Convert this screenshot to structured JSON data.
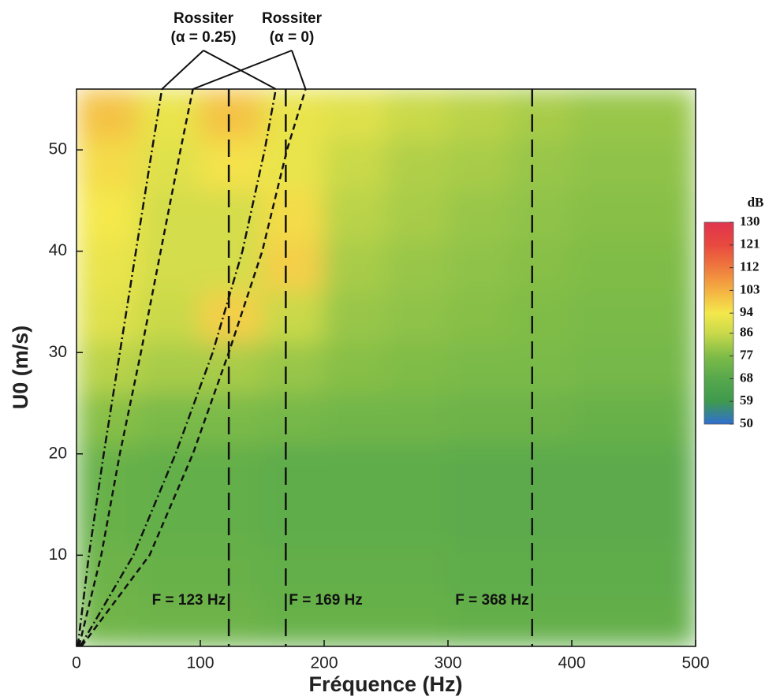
{
  "chart_data": {
    "type": "heatmap",
    "xlabel": "Fréquence (Hz)",
    "ylabel": "U0 (m/s)",
    "xlim": [
      0,
      500
    ],
    "ylim": [
      1,
      56
    ],
    "xticks": [
      0,
      100,
      200,
      300,
      400,
      500
    ],
    "yticks": [
      10,
      20,
      30,
      40,
      50
    ],
    "xbins": [
      0,
      50,
      100,
      150,
      200,
      250,
      300,
      350,
      400,
      450,
      500
    ],
    "ybins": [
      1,
      6,
      11,
      16,
      21,
      26,
      31,
      36,
      41,
      46,
      51,
      56
    ],
    "z": [
      [
        74,
        73,
        73,
        72,
        72,
        72,
        71,
        71,
        71,
        71
      ],
      [
        73,
        72,
        72,
        71,
        71,
        71,
        70,
        70,
        70,
        70
      ],
      [
        72,
        71,
        71,
        70,
        70,
        70,
        69,
        69,
        69,
        69
      ],
      [
        72,
        71,
        71,
        70,
        70,
        70,
        69,
        69,
        69,
        69
      ],
      [
        78,
        76,
        76,
        75,
        74,
        74,
        73,
        73,
        72,
        72
      ],
      [
        84,
        82,
        82,
        80,
        78,
        77,
        76,
        76,
        75,
        75
      ],
      [
        90,
        86,
        98,
        86,
        80,
        79,
        78,
        77,
        76,
        76
      ],
      [
        92,
        88,
        88,
        98,
        82,
        80,
        79,
        78,
        77,
        77
      ],
      [
        94,
        88,
        88,
        96,
        84,
        82,
        80,
        79,
        78,
        78
      ],
      [
        96,
        90,
        95,
        92,
        86,
        83,
        82,
        80,
        79,
        79
      ],
      [
        100,
        92,
        100,
        92,
        90,
        86,
        84,
        82,
        80,
        80
      ]
    ],
    "colorbar": {
      "label": "dB",
      "ticks": [
        50,
        59,
        68,
        77,
        86,
        94,
        103,
        112,
        121,
        130
      ],
      "colors": [
        "#2f6fd0",
        "#3f9a4e",
        "#56a84c",
        "#7fbc47",
        "#c9d94a",
        "#f4e84c",
        "#f4b042",
        "#ef7a3e",
        "#e8493f",
        "#e0344f"
      ]
    },
    "series": [
      {
        "x": [
          1,
          10,
          22,
          35,
          48,
          61,
          69
        ],
        "values": [
          1,
          10,
          20,
          30,
          40,
          50,
          56
        ],
        "dash": "dashdot"
      },
      {
        "x": [
          3,
          46,
          80,
          110,
          134,
          152,
          161
        ],
        "values": [
          1,
          10,
          20,
          30,
          40,
          50,
          56
        ],
        "dash": "dashdot"
      },
      {
        "x": [
          2,
          20,
          35,
          52,
          68,
          84,
          94
        ],
        "values": [
          1,
          10,
          20,
          30,
          40,
          50,
          56
        ],
        "dash": "dashed"
      },
      {
        "x": [
          4,
          59,
          94,
          123,
          150,
          170,
          185
        ],
        "values": [
          1,
          10,
          20,
          30,
          40,
          50,
          56
        ],
        "dash": "dashed"
      }
    ],
    "vlines": [
      {
        "value": 123,
        "label": "F = 123 Hz",
        "side": "left"
      },
      {
        "value": 169,
        "label": "F = 169 Hz",
        "side": "right"
      },
      {
        "value": 368,
        "label": "F = 368 Hz",
        "side": "left"
      }
    ],
    "annotations": [
      {
        "lines": [
          "Rossiter",
          "(α = 0.25)"
        ],
        "targets": [
          0,
          1
        ]
      },
      {
        "lines": [
          "Rossiter",
          "(α = 0)"
        ],
        "targets": [
          2,
          3
        ]
      }
    ]
  }
}
